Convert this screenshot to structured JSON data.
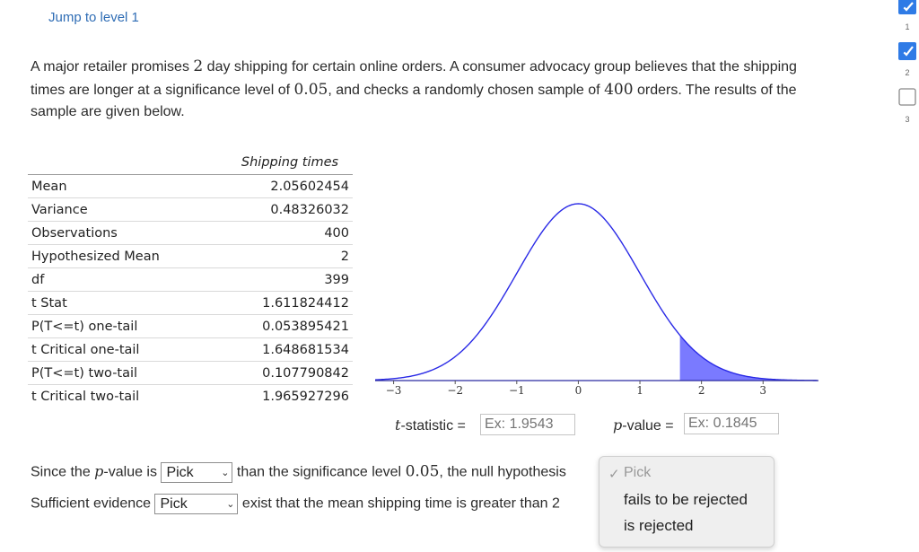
{
  "nav": {
    "jump_link": "Jump to level 1"
  },
  "problem": {
    "part1": "A major retailer promises ",
    "days": "2",
    "part2": " day shipping for certain online orders. A consumer advocacy group believes that the shipping times are longer at a significance level of ",
    "alpha": "0.05",
    "part3": ", and checks a randomly chosen sample of ",
    "n": "400",
    "part4": " orders. The results of the sample are given below."
  },
  "table": {
    "header": "Shipping times",
    "rows": [
      {
        "label": "Mean",
        "value": "2.05602454"
      },
      {
        "label": "Variance",
        "value": "0.48326032"
      },
      {
        "label": "Observations",
        "value": "400"
      },
      {
        "label": "Hypothesized Mean",
        "value": "2"
      },
      {
        "label": "df",
        "value": "399"
      },
      {
        "label": "t Stat",
        "value": "1.611824412"
      },
      {
        "label": "P(T<=t) one-tail",
        "value": "0.053895421"
      },
      {
        "label": "t Critical one-tail",
        "value": "1.648681534"
      },
      {
        "label": "P(T<=t) two-tail",
        "value": "0.107790842"
      },
      {
        "label": "t Critical two-tail",
        "value": "1.965927296"
      }
    ]
  },
  "chart_data": {
    "type": "area",
    "x_ticks": [
      "−3",
      "−2",
      "−1",
      "0",
      "1",
      "2",
      "3"
    ],
    "xlim": [
      -3.3,
      3.9
    ],
    "shaded_from": 1.65,
    "curve_color": "#2a2ae6",
    "shade_color": "#7a7aff"
  },
  "inputs": {
    "t_label_var": "t",
    "t_label_rest": "-statistic =",
    "t_placeholder": "Ex: 1.9543",
    "p_label_var": "p",
    "p_label_rest": "-value =",
    "p_placeholder": "Ex: 0.1845"
  },
  "sentence1": {
    "prefix": "Since the ",
    "p_var": "p",
    "mid": "-value is ",
    "select": "Pick",
    "suffix_a": " than the significance level ",
    "alpha": "0.05",
    "suffix_b": ", the null hypothesis"
  },
  "sentence2": {
    "prefix": "Sufficient evidence ",
    "select": "Pick",
    "suffix": " exist that the mean shipping time is greater than 2"
  },
  "dropdown": {
    "options": [
      "Pick",
      "fails to be rejected",
      "is rejected"
    ],
    "selected_index": 0
  },
  "rail": {
    "items": [
      {
        "number": "1",
        "state": "completed"
      },
      {
        "number": "2",
        "state": "completed"
      },
      {
        "number": "3",
        "state": "empty"
      }
    ],
    "accent": "#2f7be6"
  }
}
